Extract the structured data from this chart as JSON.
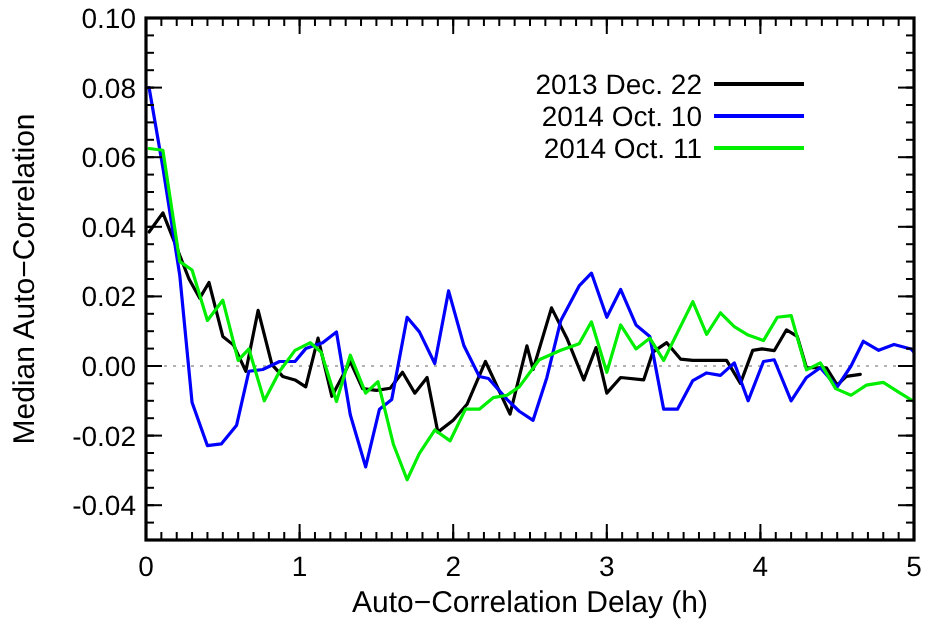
{
  "chart_data": {
    "type": "line",
    "xlabel": "Auto−Correlation Delay (h)",
    "ylabel": "Median Auto−Correlation",
    "xlim": [
      0,
      5
    ],
    "xticks": [
      0,
      1,
      2,
      3,
      4,
      5
    ],
    "ylim": [
      -0.05,
      0.1
    ],
    "yticks": [
      {
        "value": -0.04,
        "label": "-0.04"
      },
      {
        "value": -0.02,
        "label": "-0.02"
      },
      {
        "value": 0,
        "label": "0.00"
      },
      {
        "value": 0.02,
        "label": "0.02"
      },
      {
        "value": 0.04,
        "label": "0.04"
      },
      {
        "value": 0.06,
        "label": "0.06"
      },
      {
        "value": 0.08,
        "label": "0.08"
      },
      {
        "value": 0.1,
        "label": "0.10"
      }
    ],
    "grid": false,
    "legend": "top right",
    "line_style": "solid",
    "ref_lines": [
      {
        "axis": "y",
        "value": 0,
        "label": null,
        "color": "#999999",
        "line_style": "dotted"
      }
    ],
    "series": [
      {
        "name": "2013 Dec. 22",
        "color": "#000000",
        "x": [
          0.02,
          0.11,
          0.2,
          0.28,
          0.35,
          0.41,
          0.5,
          0.57,
          0.65,
          0.73,
          0.82,
          0.89,
          0.97,
          1.04,
          1.12,
          1.21,
          1.33,
          1.41,
          1.5,
          1.59,
          1.67,
          1.75,
          1.83,
          1.9,
          2.0,
          2.09,
          2.21,
          2.37,
          2.48,
          2.52,
          2.64,
          2.74,
          2.85,
          2.93,
          3.0,
          3.09,
          3.24,
          3.3,
          3.39,
          3.48,
          3.56,
          3.78,
          3.87,
          3.95,
          4.01,
          4.09,
          4.17,
          4.24,
          4.3,
          4.43,
          4.5,
          4.56,
          4.65
        ],
        "values": [
          0.0385,
          0.044,
          0.034,
          0.025,
          0.0195,
          0.024,
          0.0085,
          0.006,
          -0.0015,
          0.016,
          0.0004,
          -0.003,
          -0.004,
          -0.006,
          0.008,
          -0.0087,
          0.0013,
          -0.0065,
          -0.007,
          -0.0064,
          -0.0018,
          -0.0078,
          -0.0033,
          -0.019,
          -0.0156,
          -0.011,
          0.0013,
          -0.0138,
          0.0058,
          -0.001,
          0.0167,
          0.008,
          -0.004,
          0.0053,
          -0.0078,
          -0.0033,
          -0.004,
          0.004,
          0.0067,
          0.002,
          0.0016,
          0.0016,
          -0.005,
          0.0045,
          0.0049,
          0.0044,
          0.0104,
          0.0085,
          -0.0005,
          -0.0005,
          -0.0055,
          -0.003,
          -0.0024
        ]
      },
      {
        "name": "2014 Oct. 10",
        "color": "#0000ff",
        "x": [
          0.02,
          0.11,
          0.22,
          0.3,
          0.4,
          0.49,
          0.59,
          0.67,
          0.76,
          0.87,
          0.97,
          1.04,
          1.15,
          1.24,
          1.33,
          1.43,
          1.52,
          1.6,
          1.7,
          1.78,
          1.88,
          1.97,
          2.07,
          2.17,
          2.23,
          2.35,
          2.43,
          2.52,
          2.61,
          2.7,
          2.82,
          2.9,
          3.0,
          3.09,
          3.19,
          3.28,
          3.37,
          3.46,
          3.56,
          3.65,
          3.74,
          3.83,
          3.92,
          4.02,
          4.09,
          4.2,
          4.3,
          4.39,
          4.5,
          4.59,
          4.67,
          4.77,
          4.87,
          4.98,
          5.0
        ],
        "values": [
          0.08,
          0.057,
          0.026,
          -0.0105,
          -0.0229,
          -0.0224,
          -0.017,
          -0.0015,
          -0.001,
          0.0013,
          0.0013,
          0.005,
          0.0067,
          0.0098,
          -0.014,
          -0.029,
          -0.0124,
          -0.0096,
          0.014,
          0.0098,
          0.0007,
          0.0216,
          0.0058,
          -0.003,
          -0.0036,
          -0.0096,
          -0.013,
          -0.0156,
          -0.0033,
          0.013,
          0.023,
          0.0267,
          0.014,
          0.022,
          0.0118,
          0.0085,
          -0.0124,
          -0.0124,
          -0.0042,
          -0.002,
          -0.0027,
          0.0009,
          -0.01,
          0.0013,
          0.0018,
          -0.01,
          -0.0033,
          -0.0005,
          -0.006,
          0,
          0.0071,
          0.0045,
          0.0062,
          0.0049,
          0.004
        ]
      },
      {
        "name": "2014 Oct. 11",
        "color": "#00ee00",
        "x": [
          0.02,
          0.11,
          0.22,
          0.3,
          0.4,
          0.5,
          0.6,
          0.67,
          0.77,
          0.87,
          0.97,
          1.07,
          1.14,
          1.24,
          1.33,
          1.43,
          1.51,
          1.61,
          1.7,
          1.78,
          1.88,
          1.98,
          2.08,
          2.17,
          2.26,
          2.35,
          2.43,
          2.56,
          2.7,
          2.82,
          2.9,
          3.0,
          3.09,
          3.19,
          3.28,
          3.37,
          3.56,
          3.65,
          3.74,
          3.83,
          3.92,
          4.02,
          4.11,
          4.2,
          4.3,
          4.39,
          4.49,
          4.59,
          4.69,
          4.8,
          4.91,
          5.0
        ],
        "values": [
          0.0625,
          0.062,
          0.03,
          0.0276,
          0.0131,
          0.0189,
          0.0016,
          0.0049,
          -0.01,
          -0.0015,
          0.0045,
          0.0067,
          0.004,
          -0.0102,
          0.0031,
          -0.0078,
          -0.0045,
          -0.0224,
          -0.0327,
          -0.0251,
          -0.0184,
          -0.0215,
          -0.0124,
          -0.0124,
          -0.0091,
          -0.0084,
          -0.006,
          0.0018,
          0.0045,
          0.0064,
          0.0127,
          -0.0018,
          0.0118,
          0.0049,
          0.008,
          0.0016,
          0.0185,
          0.0091,
          0.0153,
          0.0113,
          0.0089,
          0.0073,
          0.014,
          0.0145,
          -0.0011,
          0.0009,
          -0.0065,
          -0.0084,
          -0.0055,
          -0.0047,
          -0.0078,
          -0.0102
        ]
      }
    ]
  }
}
